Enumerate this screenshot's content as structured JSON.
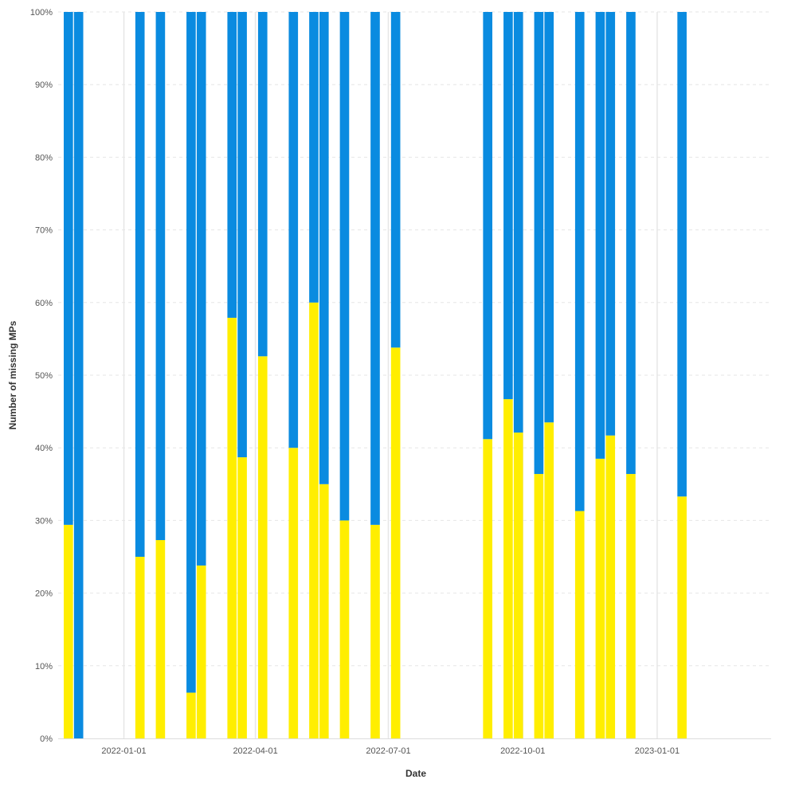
{
  "chart_data": {
    "type": "bar",
    "stacked": "percent",
    "xlabel": "Date",
    "ylabel": "Number of missing MPs",
    "ylim": [
      0,
      100
    ],
    "y_ticks": [
      "0%",
      "10%",
      "20%",
      "30%",
      "40%",
      "50%",
      "60%",
      "70%",
      "80%",
      "90%",
      "100%"
    ],
    "x_ticks": [
      {
        "date": "2022-01-01",
        "label": "2022-01-01"
      },
      {
        "date": "2022-04-01",
        "label": "2022-04-01"
      },
      {
        "date": "2022-07-01",
        "label": "2022-07-01"
      },
      {
        "date": "2022-10-01",
        "label": "2022-10-01"
      },
      {
        "date": "2023-01-01",
        "label": "2023-01-01"
      }
    ],
    "xlim": [
      "2021-11-17",
      "2023-03-20"
    ],
    "grid": true,
    "legend": "none",
    "colors": {
      "yellow": "#ffee00",
      "blue": "#0a8be0",
      "grid": "#e6e6e6"
    },
    "x": [
      "2021-11-24",
      "2021-12-01",
      "2022-01-12",
      "2022-01-26",
      "2022-02-16",
      "2022-02-23",
      "2022-03-16",
      "2022-03-23",
      "2022-04-06",
      "2022-04-27",
      "2022-05-11",
      "2022-05-18",
      "2022-06-01",
      "2022-06-22",
      "2022-07-06",
      "2022-09-07",
      "2022-09-21",
      "2022-09-28",
      "2022-10-12",
      "2022-10-19",
      "2022-11-09",
      "2022-11-23",
      "2022-11-30",
      "2022-12-14",
      "2023-01-18"
    ],
    "series": [
      {
        "color": "#ffee00",
        "values": [
          29.4,
          0,
          25,
          27.3,
          6.3,
          23.8,
          57.9,
          38.7,
          52.6,
          40,
          60,
          35,
          30,
          29.4,
          53.8,
          41.2,
          46.7,
          42.1,
          36.4,
          43.5,
          31.3,
          38.5,
          41.7,
          36.4,
          33.3
        ]
      },
      {
        "color": "#0a8be0",
        "values": [
          70.6,
          100,
          75,
          72.7,
          93.7,
          76.2,
          42.1,
          61.3,
          47.4,
          60,
          40,
          65,
          70,
          70.6,
          46.2,
          58.8,
          53.3,
          57.9,
          63.6,
          56.5,
          68.7,
          61.5,
          58.3,
          63.6,
          66.7
        ]
      }
    ]
  }
}
